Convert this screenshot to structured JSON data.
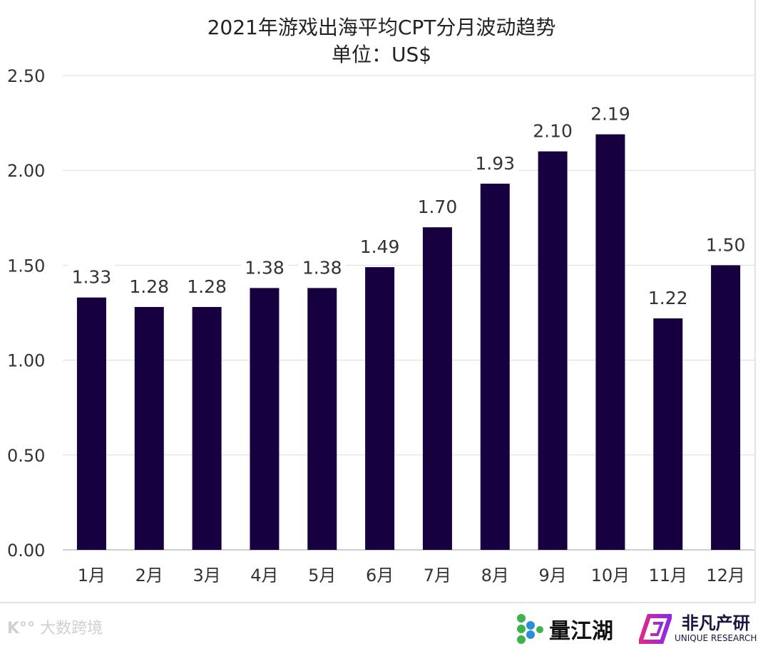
{
  "chart_data": {
    "type": "bar",
    "title": "2021年游戏出海平均CPT分月波动趋势",
    "subtitle": "单位：US$",
    "categories": [
      "1月",
      "2月",
      "3月",
      "4月",
      "5月",
      "6月",
      "7月",
      "8月",
      "9月",
      "10月",
      "11月",
      "12月"
    ],
    "values": [
      1.33,
      1.28,
      1.28,
      1.38,
      1.38,
      1.49,
      1.7,
      1.93,
      2.1,
      2.19,
      1.22,
      1.5
    ],
    "data_labels": [
      "1.33",
      "1.28",
      "1.28",
      "1.38",
      "1.38",
      "1.49",
      "1.70",
      "1.93",
      "2.10",
      "2.19",
      "1.22",
      "1.50"
    ],
    "yticks": [
      "0.00",
      "0.50",
      "1.00",
      "1.50",
      "2.00",
      "2.50"
    ],
    "ylim": [
      0,
      2.5
    ],
    "grid": true,
    "bar_color": "#170040"
  },
  "footer": {
    "watermark": "大数跨境",
    "logo1": "量江湖",
    "logo2_cn": "非凡产研",
    "logo2_en": "UNIQUE RESEARCH"
  }
}
